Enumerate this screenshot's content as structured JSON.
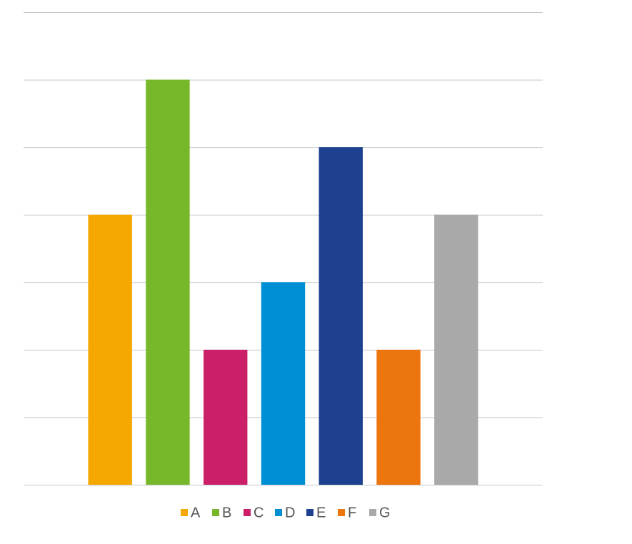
{
  "chart_data": {
    "type": "bar",
    "categories": [
      "A",
      "B",
      "C",
      "D",
      "E",
      "F",
      "G"
    ],
    "values": [
      4,
      6,
      2,
      3,
      5,
      2,
      4
    ],
    "colors": [
      "#f5a800",
      "#77b82a",
      "#cc1f6a",
      "#008fd5",
      "#1d418f",
      "#ec750e",
      "#a9a9a9"
    ],
    "ylim": [
      0,
      7
    ],
    "yticks": [
      0,
      1,
      2,
      3,
      4,
      5,
      6,
      7
    ],
    "grid": true,
    "legend": "bottom"
  }
}
